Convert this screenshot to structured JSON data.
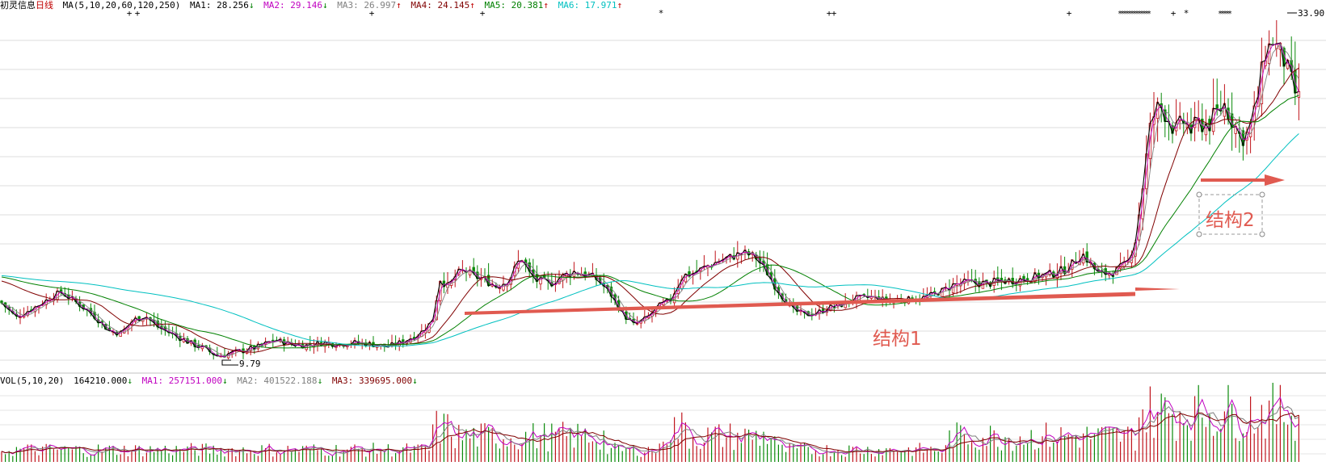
{
  "header": {
    "stock_name": "初灵信息",
    "period": "日线",
    "ma_label": "MA(5,10,20,60,120,250)",
    "ma_items": [
      {
        "label": "MA1:",
        "value": "28.256",
        "arrow": "↓",
        "color": "#000000"
      },
      {
        "label": "MA2:",
        "value": "29.146",
        "arrow": "↓",
        "color": "#c000c0"
      },
      {
        "label": "MA3:",
        "value": "26.997",
        "arrow": "↑",
        "color": "#808080"
      },
      {
        "label": "MA4:",
        "value": "24.145",
        "arrow": "↑",
        "color": "#800000"
      },
      {
        "label": "MA5:",
        "value": "20.381",
        "arrow": "↑",
        "color": "#008000"
      },
      {
        "label": "MA6:",
        "value": "17.971",
        "arrow": "↑",
        "color": "#00c0c0"
      }
    ]
  },
  "volume_header": {
    "label": "VOL(5,10,20)",
    "value": "164210.000",
    "value_arrow": "↓",
    "ma_items": [
      {
        "label": "MA1:",
        "value": "257151.000",
        "arrow": "↓",
        "color": "#c000c0"
      },
      {
        "label": "MA2:",
        "value": "401522.188",
        "arrow": "↓",
        "color": "#808080"
      },
      {
        "label": "MA3:",
        "value": "339695.000",
        "arrow": "↓",
        "color": "#800000"
      }
    ]
  },
  "annotations": {
    "structure1": "结构1",
    "structure2": "结构2",
    "low_label": "9.79",
    "high_label": "33.90"
  },
  "chart_data": [
    {
      "type": "candlestick",
      "title": "初灵信息 日线",
      "low": 9.79,
      "high": 33.9,
      "moving_averages": [
        {
          "name": "MA1",
          "period": 5,
          "last": 28.256,
          "color": "#000000"
        },
        {
          "name": "MA2",
          "period": 10,
          "last": 29.146,
          "color": "#c000c0"
        },
        {
          "name": "MA3",
          "period": 20,
          "last": 26.997,
          "color": "#808080"
        },
        {
          "name": "MA4",
          "period": 60,
          "last": 24.145,
          "color": "#800000"
        },
        {
          "name": "MA5",
          "period": 120,
          "last": 20.381,
          "color": "#008000"
        },
        {
          "name": "MA6",
          "period": 250,
          "last": 17.971,
          "color": "#00c0c0"
        }
      ],
      "close_profile": [
        [
          0,
          14.0
        ],
        [
          20,
          12.8
        ],
        [
          45,
          13.6
        ],
        [
          75,
          14.7
        ],
        [
          95,
          13.9
        ],
        [
          115,
          13.0
        ],
        [
          135,
          11.8
        ],
        [
          150,
          11.6
        ],
        [
          165,
          12.6
        ],
        [
          180,
          12.9
        ],
        [
          195,
          12.1
        ],
        [
          215,
          11.5
        ],
        [
          235,
          10.9
        ],
        [
          255,
          10.4
        ],
        [
          270,
          9.9
        ],
        [
          285,
          10.1
        ],
        [
          300,
          10.3
        ],
        [
          320,
          10.6
        ],
        [
          340,
          11.1
        ],
        [
          360,
          10.8
        ],
        [
          380,
          10.7
        ],
        [
          400,
          10.9
        ],
        [
          420,
          10.8
        ],
        [
          440,
          10.9
        ],
        [
          460,
          10.8
        ],
        [
          480,
          10.6
        ],
        [
          500,
          11.0
        ],
        [
          520,
          11.6
        ],
        [
          535,
          12.5
        ],
        [
          545,
          15.7
        ],
        [
          555,
          15.0
        ],
        [
          565,
          16.0
        ],
        [
          575,
          16.3
        ],
        [
          585,
          15.9
        ],
        [
          600,
          15.6
        ],
        [
          615,
          15.1
        ],
        [
          630,
          15.6
        ],
        [
          645,
          17.3
        ],
        [
          655,
          16.1
        ],
        [
          665,
          15.5
        ],
        [
          680,
          15.3
        ],
        [
          695,
          15.8
        ],
        [
          710,
          16.2
        ],
        [
          725,
          16.0
        ],
        [
          740,
          15.6
        ],
        [
          755,
          14.6
        ],
        [
          770,
          13.1
        ],
        [
          785,
          12.2
        ],
        [
          800,
          12.7
        ],
        [
          815,
          13.6
        ],
        [
          830,
          14.1
        ],
        [
          845,
          15.9
        ],
        [
          860,
          16.1
        ],
        [
          875,
          16.6
        ],
        [
          890,
          17.0
        ],
        [
          905,
          17.3
        ],
        [
          920,
          17.6
        ],
        [
          935,
          17.3
        ],
        [
          950,
          16.1
        ],
        [
          965,
          14.6
        ],
        [
          980,
          13.4
        ],
        [
          995,
          13.0
        ],
        [
          1010,
          13.1
        ],
        [
          1025,
          13.5
        ],
        [
          1040,
          13.7
        ],
        [
          1060,
          14.2
        ],
        [
          1080,
          14.3
        ],
        [
          1100,
          14.0
        ],
        [
          1120,
          14.1
        ],
        [
          1140,
          14.2
        ],
        [
          1160,
          14.6
        ],
        [
          1180,
          15.2
        ],
        [
          1200,
          15.4
        ],
        [
          1220,
          15.3
        ],
        [
          1240,
          15.5
        ],
        [
          1260,
          15.6
        ],
        [
          1280,
          15.8
        ],
        [
          1300,
          16.0
        ],
        [
          1320,
          16.4
        ],
        [
          1340,
          17.5
        ],
        [
          1360,
          16.0
        ],
        [
          1380,
          16.2
        ],
        [
          1395,
          16.8
        ],
        [
          1405,
          18.5
        ],
        [
          1415,
          23.0
        ],
        [
          1425,
          27.5
        ],
        [
          1435,
          28.6
        ],
        [
          1445,
          27.8
        ],
        [
          1455,
          26.6
        ],
        [
          1465,
          27.4
        ],
        [
          1475,
          26.7
        ],
        [
          1485,
          27.3
        ],
        [
          1495,
          27.1
        ],
        [
          1505,
          27.9
        ],
        [
          1515,
          28.7
        ],
        [
          1525,
          27.5
        ],
        [
          1535,
          26.2
        ],
        [
          1545,
          26.5
        ],
        [
          1555,
          28.6
        ],
        [
          1565,
          32.4
        ],
        [
          1575,
          33.4
        ],
        [
          1585,
          32.5
        ],
        [
          1595,
          31.0
        ],
        [
          1605,
          29.1
        ]
      ]
    },
    {
      "type": "bar",
      "title": "VOL(5,10,20)",
      "last_volume": 164210.0,
      "moving_averages": [
        {
          "name": "MA1",
          "period": 5,
          "last": 257151.0
        },
        {
          "name": "MA2",
          "period": 10,
          "last": 401522.188
        },
        {
          "name": "MA3",
          "period": 20,
          "last": 339695.0
        }
      ]
    }
  ]
}
